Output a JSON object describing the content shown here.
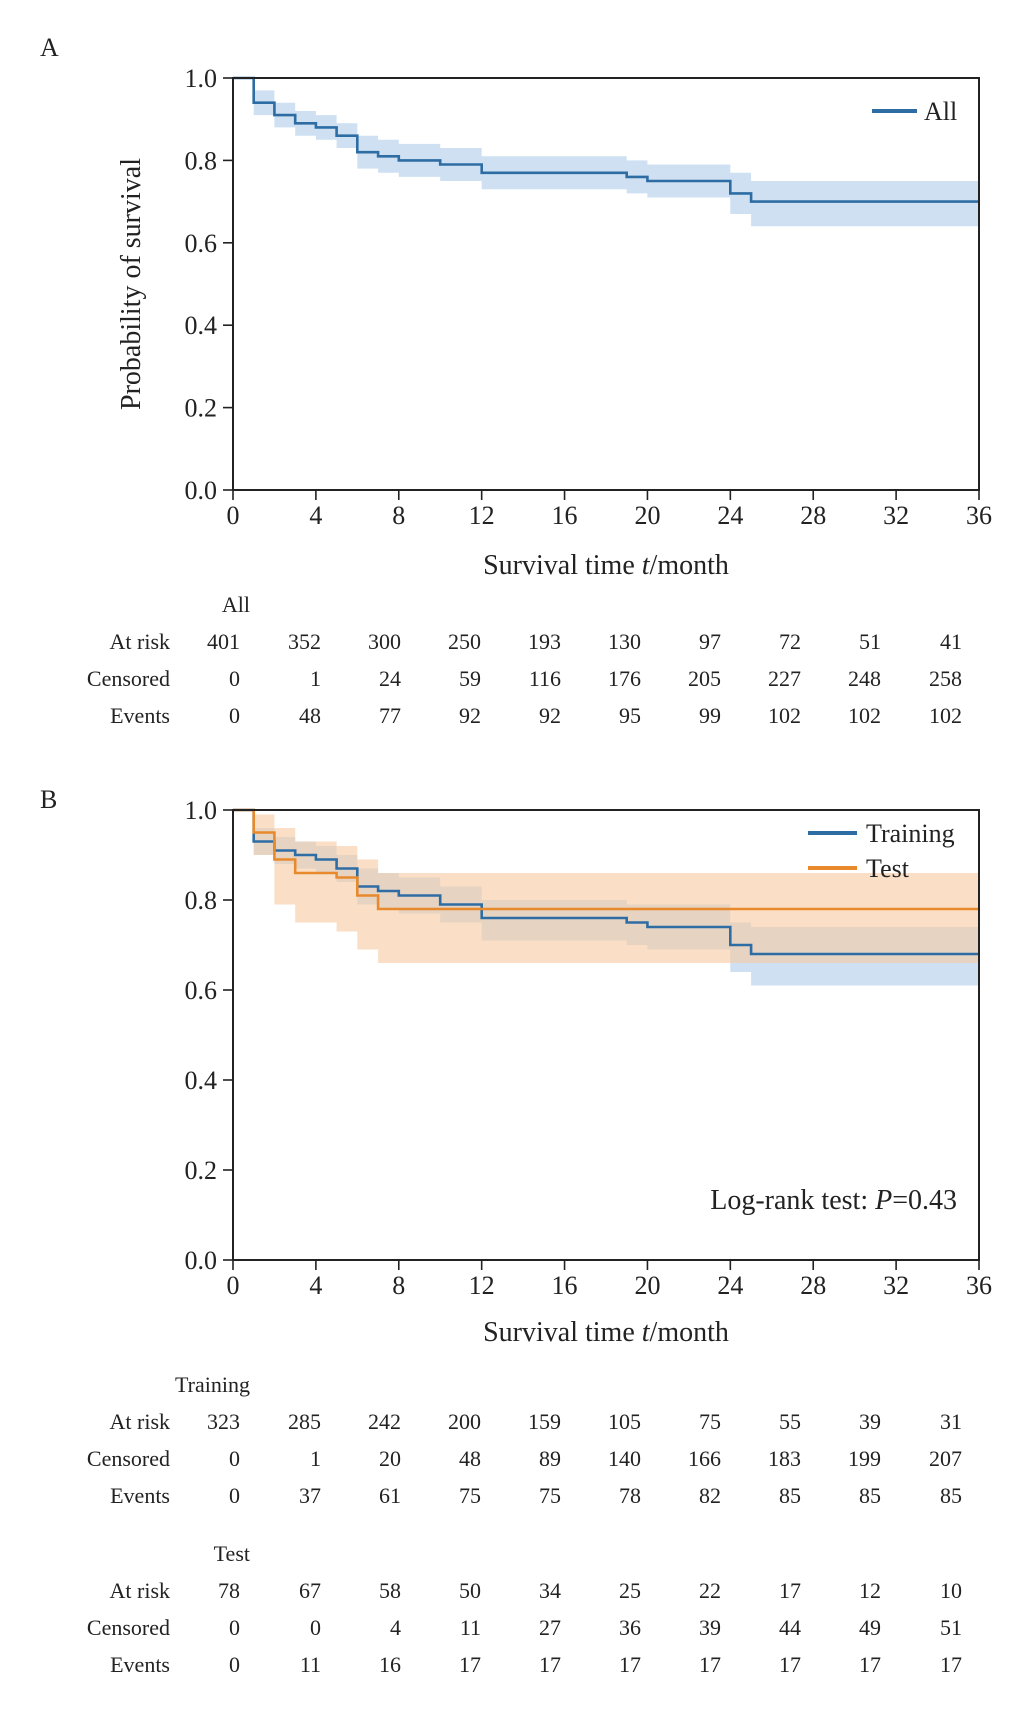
{
  "colors": {
    "blue": "#2e6da4",
    "blue_band": "#aecbe9",
    "orange": "#e88a2c",
    "orange_band": "#f6c9a0",
    "axis": "#222222"
  },
  "chart_data": [
    {
      "panel_label": "A",
      "type": "line",
      "subtype": "kaplan-meier-step",
      "xlabel": "Survival time t/month",
      "xlabel_prefix": "Survival time ",
      "xlabel_var": "t",
      "xlabel_suffix": "/month",
      "ylabel": "Probability of survival",
      "xlim": [
        0,
        36
      ],
      "ylim": [
        0,
        1
      ],
      "xticks": [
        "0",
        "4",
        "8",
        "12",
        "16",
        "20",
        "24",
        "28",
        "32",
        "36"
      ],
      "yticks": [
        "0.0",
        "0.2",
        "0.4",
        "0.6",
        "0.8",
        "1.0"
      ],
      "legend_position": "top-right",
      "series": [
        {
          "name": "All",
          "color": "#2e6da4",
          "band_color": "#aecbe9",
          "x": [
            0,
            1,
            2,
            3,
            4,
            5,
            6,
            7,
            8,
            9,
            10,
            12,
            19,
            20,
            24,
            25,
            36
          ],
          "y": [
            1.0,
            0.94,
            0.91,
            0.89,
            0.88,
            0.86,
            0.82,
            0.81,
            0.8,
            0.8,
            0.79,
            0.77,
            0.76,
            0.75,
            0.72,
            0.7,
            0.7
          ],
          "lower": [
            1.0,
            0.91,
            0.88,
            0.86,
            0.85,
            0.83,
            0.78,
            0.77,
            0.76,
            0.76,
            0.75,
            0.73,
            0.72,
            0.71,
            0.67,
            0.64,
            0.64
          ],
          "upper": [
            1.0,
            0.97,
            0.94,
            0.92,
            0.91,
            0.89,
            0.86,
            0.85,
            0.84,
            0.84,
            0.83,
            0.81,
            0.8,
            0.79,
            0.77,
            0.75,
            0.75
          ]
        }
      ],
      "risk_table": {
        "time_points": [
          0,
          4,
          8,
          12,
          16,
          20,
          24,
          28,
          32,
          36
        ],
        "row_labels": [
          "At risk",
          "Censored",
          "Events"
        ],
        "groups": [
          {
            "name": "All",
            "at_risk": [
              "401",
              "352",
              "300",
              "250",
              "193",
              "130",
              "97",
              "72",
              "51",
              "41"
            ],
            "censored": [
              "0",
              "1",
              "24",
              "59",
              "116",
              "176",
              "205",
              "227",
              "248",
              "258"
            ],
            "events": [
              "0",
              "48",
              "77",
              "92",
              "92",
              "95",
              "99",
              "102",
              "102",
              "102"
            ]
          }
        ]
      }
    },
    {
      "panel_label": "B",
      "type": "line",
      "subtype": "kaplan-meier-step",
      "xlabel": "Survival time t/month",
      "xlabel_prefix": "Survival time ",
      "xlabel_var": "t",
      "xlabel_suffix": "/month",
      "ylabel": "",
      "xlim": [
        0,
        36
      ],
      "ylim": [
        0,
        1
      ],
      "xticks": [
        "0",
        "4",
        "8",
        "12",
        "16",
        "20",
        "24",
        "28",
        "32",
        "36"
      ],
      "yticks": [
        "0.0",
        "0.2",
        "0.4",
        "0.6",
        "0.8",
        "1.0"
      ],
      "legend_position": "top-right",
      "annotation": {
        "prefix": "Log-rank test: ",
        "var": "P",
        "suffix": "=0.43"
      },
      "series": [
        {
          "name": "Training",
          "color": "#2e6da4",
          "band_color": "#aecbe9",
          "x": [
            0,
            1,
            2,
            3,
            4,
            5,
            6,
            7,
            8,
            10,
            12,
            19,
            20,
            24,
            25,
            36
          ],
          "y": [
            1.0,
            0.93,
            0.91,
            0.9,
            0.89,
            0.87,
            0.83,
            0.82,
            0.81,
            0.79,
            0.76,
            0.75,
            0.74,
            0.7,
            0.68,
            0.68
          ],
          "lower": [
            1.0,
            0.9,
            0.88,
            0.87,
            0.86,
            0.84,
            0.79,
            0.78,
            0.77,
            0.75,
            0.71,
            0.7,
            0.69,
            0.64,
            0.61,
            0.61
          ],
          "upper": [
            1.0,
            0.96,
            0.94,
            0.93,
            0.92,
            0.9,
            0.87,
            0.86,
            0.85,
            0.83,
            0.8,
            0.79,
            0.79,
            0.75,
            0.74,
            0.74
          ]
        },
        {
          "name": "Test",
          "color": "#e88a2c",
          "band_color": "#f6c9a0",
          "x": [
            0,
            1,
            2,
            3,
            5,
            6,
            7,
            36
          ],
          "y": [
            1.0,
            0.95,
            0.89,
            0.86,
            0.85,
            0.81,
            0.78,
            0.78
          ],
          "lower": [
            1.0,
            0.9,
            0.79,
            0.75,
            0.73,
            0.69,
            0.66,
            0.66
          ],
          "upper": [
            1.0,
            0.99,
            0.96,
            0.93,
            0.92,
            0.89,
            0.86,
            0.86
          ]
        }
      ],
      "risk_table": {
        "time_points": [
          0,
          4,
          8,
          12,
          16,
          20,
          24,
          28,
          32,
          36
        ],
        "row_labels": [
          "At risk",
          "Censored",
          "Events"
        ],
        "groups": [
          {
            "name": "Training",
            "at_risk": [
              "323",
              "285",
              "242",
              "200",
              "159",
              "105",
              "75",
              "55",
              "39",
              "31"
            ],
            "censored": [
              "0",
              "1",
              "20",
              "48",
              "89",
              "140",
              "166",
              "183",
              "199",
              "207"
            ],
            "events": [
              "0",
              "37",
              "61",
              "75",
              "75",
              "78",
              "82",
              "85",
              "85",
              "85"
            ]
          },
          {
            "name": "Test",
            "at_risk": [
              "78",
              "67",
              "58",
              "50",
              "34",
              "25",
              "22",
              "17",
              "12",
              "10"
            ],
            "censored": [
              "0",
              "0",
              "4",
              "11",
              "27",
              "36",
              "39",
              "44",
              "49",
              "51"
            ],
            "events": [
              "0",
              "11",
              "16",
              "17",
              "17",
              "17",
              "17",
              "17",
              "17",
              "17"
            ]
          }
        ]
      }
    }
  ]
}
